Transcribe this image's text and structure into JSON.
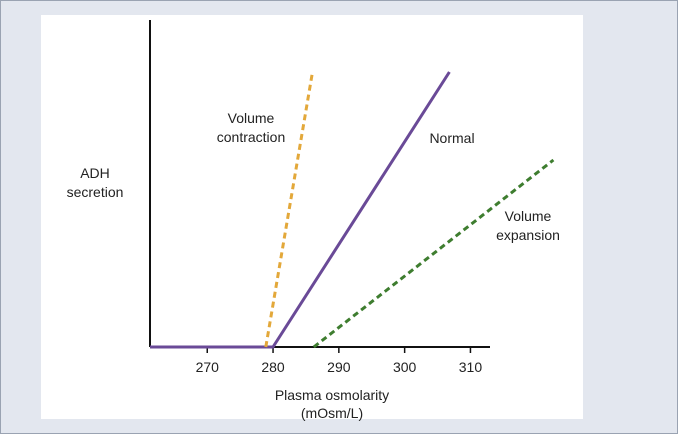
{
  "chart_data": {
    "type": "line",
    "title": "",
    "ylabel": "ADH\nsecretion",
    "xlabel": "Plasma osmolarity\n(mOsm/L)",
    "xlim": [
      261.3,
      311.4
    ],
    "ylim": [
      0,
      100
    ],
    "x_ticks": [
      270,
      280,
      290,
      300,
      310
    ],
    "y_ticks": [],
    "grid": false,
    "legend": "none",
    "series": [
      {
        "name": "Volume contraction",
        "color": "#e3a83a",
        "dash": true,
        "points": [
          [
            278.9,
            0
          ],
          [
            286.0,
            100
          ]
        ]
      },
      {
        "name": "Normal",
        "color": "#6a4a97",
        "dash": false,
        "points": [
          [
            261.3,
            0
          ],
          [
            280.0,
            0
          ],
          [
            306.8,
            100
          ]
        ]
      },
      {
        "name": "Volume expansion",
        "color": "#3e7d2f",
        "dash": true,
        "points": [
          [
            286.2,
            0
          ],
          [
            322.6,
            68
          ]
        ]
      }
    ]
  }
}
